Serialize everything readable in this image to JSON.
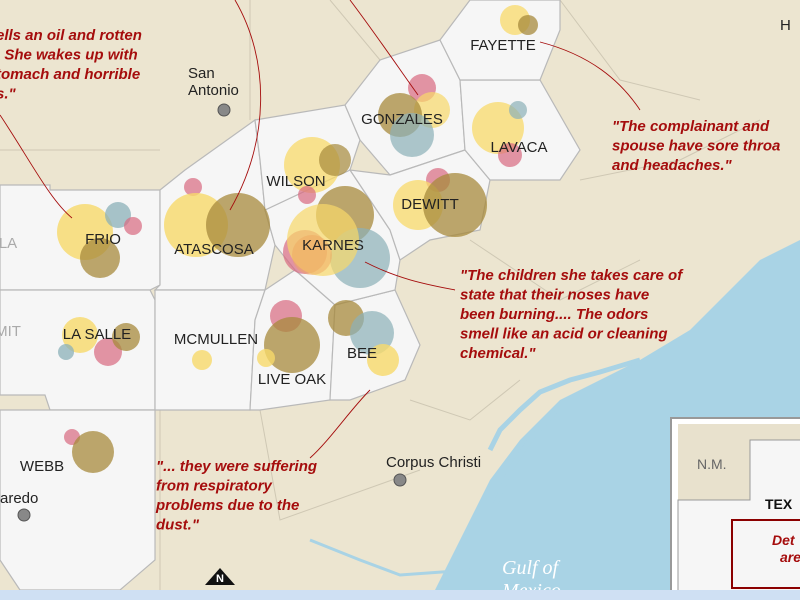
{
  "quotes": [
    {
      "lines": [
        "ells an oil and rotten",
        ". She wakes up with",
        "tomach and horrible",
        "s.\""
      ]
    },
    {
      "lines": [
        "\"The complainant and",
        "spouse have sore throa",
        "and headaches.\""
      ]
    },
    {
      "lines": [
        "\"The children she takes care of",
        "state that their noses have",
        "been burning.... The odors",
        "smell like an acid or cleaning",
        "chemical.\""
      ]
    },
    {
      "lines": [
        "\"... they were suffering",
        "from respiratory",
        "problems due to the",
        "dust.\""
      ]
    }
  ],
  "counties": [
    "FAYETTE",
    "GONZALES",
    "LAVACA",
    "WILSON",
    "DEWITT",
    "FRIO",
    "ATASCOSA",
    "KARNES",
    "LA SALLE",
    "MCMULLEN",
    "BEE",
    "LIVE OAK",
    "WEBB",
    "LA",
    "MIT"
  ],
  "cities": [
    {
      "lines": [
        "San",
        "Antonio"
      ]
    },
    {
      "lines": [
        "Corpus Christi"
      ]
    },
    {
      "lines": [
        "aredo"
      ]
    },
    {
      "lines": [
        "H"
      ]
    }
  ],
  "water": {
    "lines": [
      "Gulf of",
      "Mexico"
    ]
  },
  "inset": {
    "labels": [
      "N.M.",
      "TEX",
      "Det",
      "are"
    ]
  },
  "north": "N"
}
